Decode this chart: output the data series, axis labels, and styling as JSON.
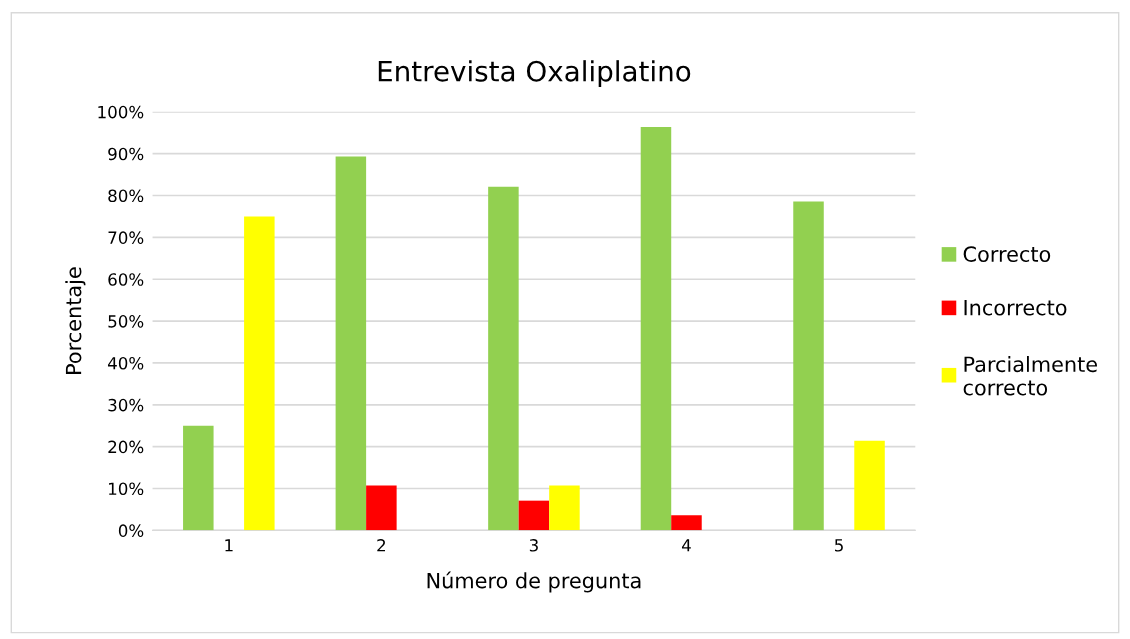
{
  "chart_data": {
    "type": "bar",
    "title": "Entrevista Oxaliplatino",
    "xlabel": "Número de pregunta",
    "ylabel": "Porcentaje",
    "categories": [
      "1",
      "2",
      "3",
      "4",
      "5"
    ],
    "series": [
      {
        "name": "Correcto",
        "color": "#92d050",
        "values": [
          25,
          89.3,
          82.1,
          96.4,
          78.6
        ]
      },
      {
        "name": "Incorrecto",
        "color": "#ff0000",
        "values": [
          0,
          10.7,
          7.1,
          3.6,
          0
        ]
      },
      {
        "name": "Parcialmente correcto",
        "color": "#ffff00",
        "values": [
          75,
          0,
          10.7,
          0,
          21.4
        ]
      }
    ],
    "ylim": [
      0,
      100
    ],
    "yticks": [
      {
        "value": 0,
        "label": "0%"
      },
      {
        "value": 10,
        "label": "10%"
      },
      {
        "value": 20,
        "label": "20%"
      },
      {
        "value": 30,
        "label": "30%"
      },
      {
        "value": 40,
        "label": "40%"
      },
      {
        "value": 50,
        "label": "50%"
      },
      {
        "value": 60,
        "label": "60%"
      },
      {
        "value": 70,
        "label": "70%"
      },
      {
        "value": 80,
        "label": "80%"
      },
      {
        "value": 90,
        "label": "90%"
      },
      {
        "value": 100,
        "label": "100%"
      }
    ],
    "grid": "y",
    "legend": "right"
  }
}
